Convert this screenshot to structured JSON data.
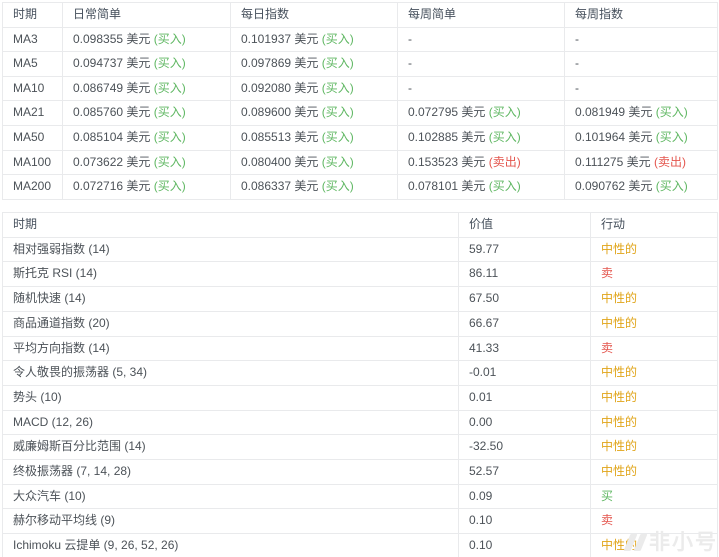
{
  "colors": {
    "buy": "#5fb762",
    "sell": "#e4564e",
    "neutral": "#e0a418",
    "header_text": "#46505c",
    "body_text": "#4c5258",
    "border": "#e9eaec",
    "watermark": "#ebebeb"
  },
  "ma_table": {
    "headers": [
      "时期",
      "日常简单",
      "每日指数",
      "每周简单",
      "每周指数"
    ],
    "rows": [
      {
        "period": "MA3",
        "cells": [
          {
            "value": "0.098355 美元",
            "signal": "(买入)",
            "type": "buy"
          },
          {
            "value": "0.101937 美元",
            "signal": "(买入)",
            "type": "buy"
          },
          {
            "value": "-",
            "signal": "",
            "type": "none"
          },
          {
            "value": "-",
            "signal": "",
            "type": "none"
          }
        ]
      },
      {
        "period": "MA5",
        "cells": [
          {
            "value": "0.094737 美元",
            "signal": "(买入)",
            "type": "buy"
          },
          {
            "value": "0.097869 美元",
            "signal": "(买入)",
            "type": "buy"
          },
          {
            "value": "-",
            "signal": "",
            "type": "none"
          },
          {
            "value": "-",
            "signal": "",
            "type": "none"
          }
        ]
      },
      {
        "period": "MA10",
        "cells": [
          {
            "value": "0.086749 美元",
            "signal": "(买入)",
            "type": "buy"
          },
          {
            "value": "0.092080 美元",
            "signal": "(买入)",
            "type": "buy"
          },
          {
            "value": "-",
            "signal": "",
            "type": "none"
          },
          {
            "value": "-",
            "signal": "",
            "type": "none"
          }
        ]
      },
      {
        "period": "MA21",
        "cells": [
          {
            "value": "0.085760 美元",
            "signal": "(买入)",
            "type": "buy"
          },
          {
            "value": "0.089600 美元",
            "signal": "(买入)",
            "type": "buy"
          },
          {
            "value": "0.072795 美元",
            "signal": "(买入)",
            "type": "buy"
          },
          {
            "value": "0.081949 美元",
            "signal": "(买入)",
            "type": "buy"
          }
        ]
      },
      {
        "period": "MA50",
        "cells": [
          {
            "value": "0.085104 美元",
            "signal": "(买入)",
            "type": "buy"
          },
          {
            "value": "0.085513 美元",
            "signal": "(买入)",
            "type": "buy"
          },
          {
            "value": "0.102885 美元",
            "signal": "(买入)",
            "type": "buy"
          },
          {
            "value": "0.101964 美元",
            "signal": "(买入)",
            "type": "buy"
          }
        ]
      },
      {
        "period": "MA100",
        "cells": [
          {
            "value": "0.073622 美元",
            "signal": "(买入)",
            "type": "buy"
          },
          {
            "value": "0.080400 美元",
            "signal": "(买入)",
            "type": "buy"
          },
          {
            "value": "0.153523 美元",
            "signal": "(卖出)",
            "type": "sell"
          },
          {
            "value": "0.111275 美元",
            "signal": "(卖出)",
            "type": "sell"
          }
        ]
      },
      {
        "period": "MA200",
        "cells": [
          {
            "value": "0.072716 美元",
            "signal": "(买入)",
            "type": "buy"
          },
          {
            "value": "0.086337 美元",
            "signal": "(买入)",
            "type": "buy"
          },
          {
            "value": "0.078101 美元",
            "signal": "(买入)",
            "type": "buy"
          },
          {
            "value": "0.090762 美元",
            "signal": "(买入)",
            "type": "buy"
          }
        ]
      }
    ]
  },
  "indicator_table": {
    "headers": [
      "时期",
      "价值",
      "行动"
    ],
    "rows": [
      {
        "name": "相对强弱指数 (14)",
        "value": "59.77",
        "action": "中性的",
        "type": "neutral"
      },
      {
        "name": "斯托克 RSI (14)",
        "value": "86.11",
        "action": "卖",
        "type": "sell"
      },
      {
        "name": "随机快速 (14)",
        "value": "67.50",
        "action": "中性的",
        "type": "neutral"
      },
      {
        "name": "商品通道指数 (20)",
        "value": "66.67",
        "action": "中性的",
        "type": "neutral"
      },
      {
        "name": "平均方向指数 (14)",
        "value": "41.33",
        "action": "卖",
        "type": "sell"
      },
      {
        "name": "令人敬畏的振荡器 (5, 34)",
        "value": "-0.01",
        "action": "中性的",
        "type": "neutral"
      },
      {
        "name": "势头 (10)",
        "value": "0.01",
        "action": "中性的",
        "type": "neutral"
      },
      {
        "name": "MACD (12, 26)",
        "value": "0.00",
        "action": "中性的",
        "type": "neutral"
      },
      {
        "name": "威廉姆斯百分比范围 (14)",
        "value": "-32.50",
        "action": "中性的",
        "type": "neutral"
      },
      {
        "name": "终极振荡器 (7, 14, 28)",
        "value": "52.57",
        "action": "中性的",
        "type": "neutral"
      },
      {
        "name": "大众汽车 (10)",
        "value": "0.09",
        "action": "买",
        "type": "buy"
      },
      {
        "name": "赫尔移动平均线 (9)",
        "value": "0.10",
        "action": "卖",
        "type": "sell"
      },
      {
        "name": "Ichimoku 云提单 (9, 26, 52, 26)",
        "value": "0.10",
        "action": "中性的",
        "type": "neutral"
      }
    ]
  },
  "watermark": {
    "text": "非小号"
  }
}
